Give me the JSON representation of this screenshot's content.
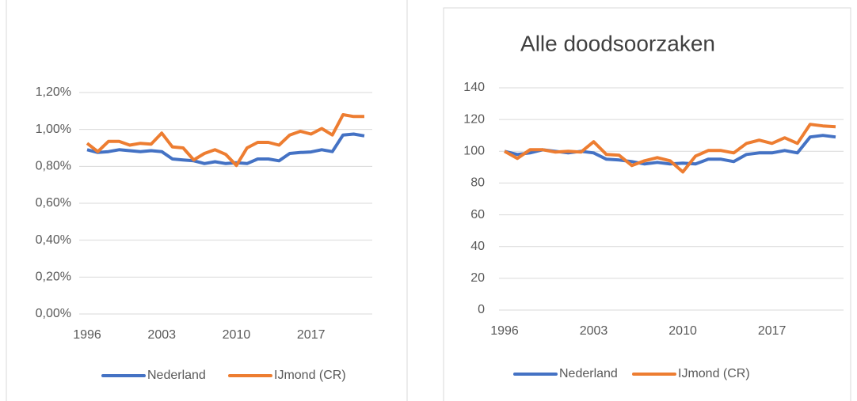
{
  "chart_data": [
    {
      "type": "line",
      "x": [
        1996,
        1997,
        1998,
        1999,
        2000,
        2001,
        2002,
        2003,
        2004,
        2005,
        2006,
        2007,
        2008,
        2009,
        2010,
        2011,
        2012,
        2013,
        2014,
        2015,
        2016,
        2017,
        2018,
        2019,
        2020,
        2021,
        2022
      ],
      "xlim": [
        1996,
        2022
      ],
      "xticks": [
        1996,
        2003,
        2010,
        2017
      ],
      "ylim": [
        0,
        1.2
      ],
      "yticks": [
        {
          "value": 0,
          "label": "0,00%"
        },
        {
          "value": 0.2,
          "label": "0,20%"
        },
        {
          "value": 0.4,
          "label": "0,40%"
        },
        {
          "value": 0.6,
          "label": "0,60%"
        },
        {
          "value": 0.8,
          "label": "0,80%"
        },
        {
          "value": 1.0,
          "label": "1,00%"
        },
        {
          "value": 1.2,
          "label": "1,20%"
        }
      ],
      "grid": true,
      "legend": "bottom",
      "series": [
        {
          "name": "Nederland",
          "color": "#4472c4",
          "values": [
            0.89,
            0.875,
            0.88,
            0.89,
            0.885,
            0.88,
            0.885,
            0.88,
            0.84,
            0.835,
            0.83,
            0.815,
            0.825,
            0.815,
            0.82,
            0.815,
            0.84,
            0.84,
            0.83,
            0.87,
            0.875,
            0.878,
            0.89,
            0.88,
            0.97,
            0.975,
            0.965
          ]
        },
        {
          "name": "IJmond (CR)",
          "color": "#ed7d31",
          "values": [
            0.925,
            0.88,
            0.935,
            0.935,
            0.915,
            0.925,
            0.92,
            0.98,
            0.905,
            0.9,
            0.835,
            0.87,
            0.89,
            0.865,
            0.805,
            0.9,
            0.93,
            0.93,
            0.915,
            0.97,
            0.99,
            0.975,
            1.005,
            0.97,
            1.08,
            1.07,
            1.07
          ]
        }
      ]
    },
    {
      "type": "line",
      "title": "Alle doodsoorzaken",
      "x": [
        1996,
        1997,
        1998,
        1999,
        2000,
        2001,
        2002,
        2003,
        2004,
        2005,
        2006,
        2007,
        2008,
        2009,
        2010,
        2011,
        2012,
        2013,
        2014,
        2015,
        2016,
        2017,
        2018,
        2019,
        2020,
        2021,
        2022
      ],
      "xlim": [
        1996,
        2022
      ],
      "xticks": [
        1996,
        2003,
        2010,
        2017
      ],
      "ylim": [
        0,
        140
      ],
      "yticks": [
        0,
        20,
        40,
        60,
        80,
        100,
        120,
        140
      ],
      "grid": true,
      "legend": "bottom",
      "series": [
        {
          "name": "Nederland",
          "color": "#4472c4",
          "values": [
            100,
            98,
            99,
            101,
            100,
            99,
            100,
            99,
            95,
            94.5,
            93.5,
            92,
            93,
            92,
            92.5,
            92,
            95,
            95,
            93.5,
            98,
            99,
            99,
            100.5,
            99,
            109,
            110,
            109
          ]
        },
        {
          "name": "IJmond (CR)",
          "color": "#ed7d31",
          "values": [
            100,
            95.5,
            101,
            101,
            99.5,
            100,
            99.5,
            106,
            98,
            97.5,
            91,
            94,
            96,
            94,
            87,
            97,
            100.5,
            100.5,
            99,
            105,
            107,
            105,
            108.5,
            105,
            117,
            116,
            115.5
          ]
        }
      ]
    }
  ]
}
